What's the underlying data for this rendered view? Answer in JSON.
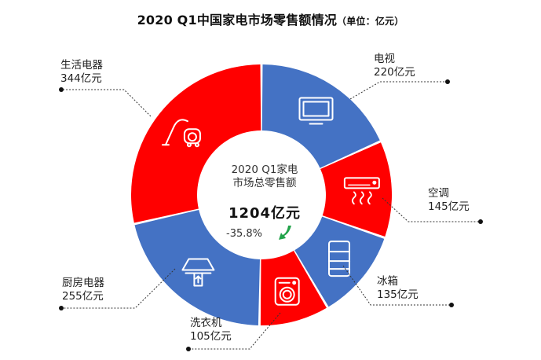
{
  "title": "2020 Q1中国家电市场零售额情况",
  "unit_note": "（单位：亿元）",
  "center": {
    "line1": "2020 Q1家电",
    "line2": "市场总零售额",
    "total": "1204亿元",
    "change": "-35.8%"
  },
  "colors": {
    "blue": "#4472c4",
    "red": "#ff0000",
    "arrow": "#22a34a"
  },
  "chart_data": {
    "type": "pie",
    "title": "2020 Q1中国家电市场零售额情况",
    "unit": "亿元",
    "style": "donut",
    "slices": [
      {
        "name": "电视",
        "value": 220,
        "value_label": "220亿元",
        "color": "#4472c4",
        "icon": "tv-icon"
      },
      {
        "name": "空调",
        "value": 145,
        "value_label": "145亿元",
        "color": "#ff0000",
        "icon": "air-conditioner-icon"
      },
      {
        "name": "冰箱",
        "value": 135,
        "value_label": "135亿元",
        "color": "#4472c4",
        "icon": "refrigerator-icon"
      },
      {
        "name": "洗衣机",
        "value": 105,
        "value_label": "105亿元",
        "color": "#ff0000",
        "icon": "washing-machine-icon"
      },
      {
        "name": "厨房电器",
        "value": 255,
        "value_label": "255亿元",
        "color": "#4472c4",
        "icon": "range-hood-icon"
      },
      {
        "name": "生活电器",
        "value": 344,
        "value_label": "344亿元",
        "color": "#ff0000",
        "icon": "vacuum-cleaner-icon"
      }
    ]
  }
}
